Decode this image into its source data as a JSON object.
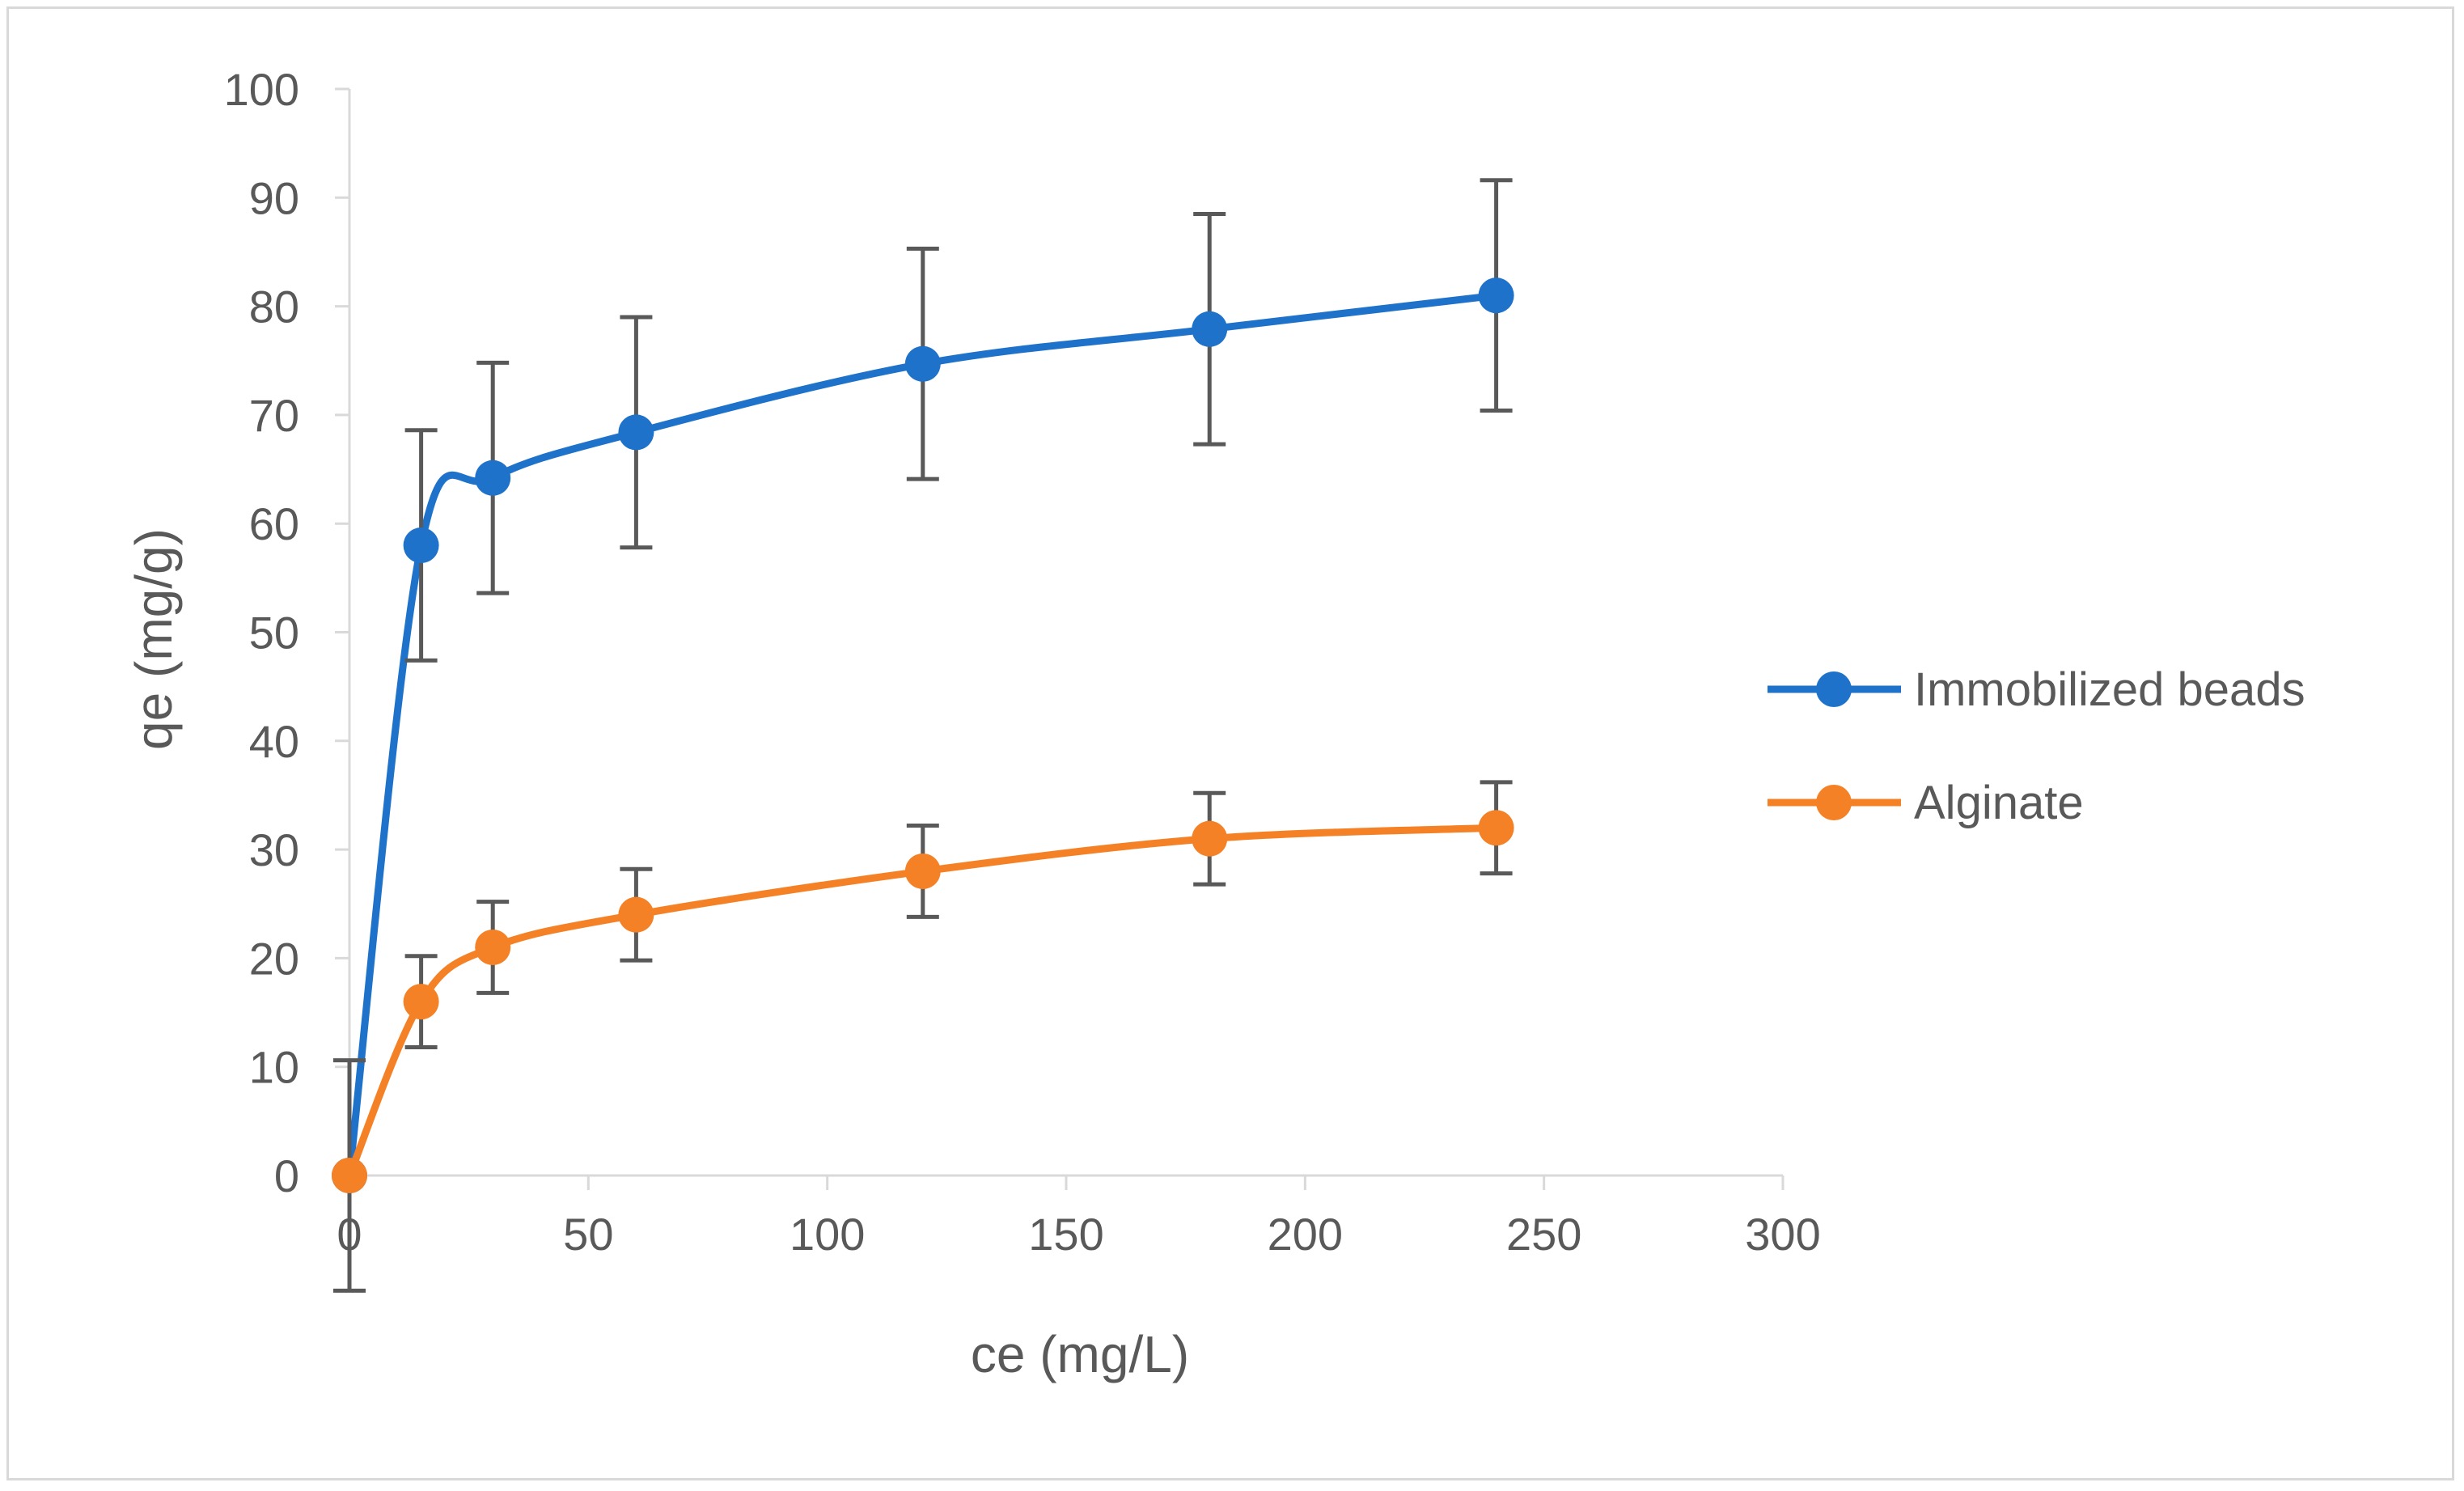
{
  "chart_data": {
    "type": "line",
    "title": "",
    "xlabel": "ce (mg/L)",
    "ylabel": "qe (mg/g)",
    "xlim": [
      0,
      300
    ],
    "ylim": [
      0,
      100
    ],
    "xticks": [
      0,
      50,
      100,
      150,
      200,
      250,
      300
    ],
    "yticks": [
      0,
      10,
      20,
      30,
      40,
      50,
      60,
      70,
      80,
      90,
      100
    ],
    "grid": false,
    "legend_position": "right",
    "smooth": true,
    "series": [
      {
        "name": "Immobilized beads",
        "color": "#1f72c9",
        "x": [
          0,
          15,
          30,
          60,
          120,
          180,
          240
        ],
        "y": [
          0,
          58,
          64.2,
          68.4,
          74.7,
          77.9,
          81
        ],
        "error": [
          10.6,
          10.6,
          10.6,
          10.6,
          10.6,
          10.6,
          10.6
        ]
      },
      {
        "name": "Alginate",
        "color": "#f58126",
        "x": [
          0,
          15,
          30,
          60,
          120,
          180,
          240
        ],
        "y": [
          0,
          16,
          21,
          24,
          28,
          31,
          32
        ],
        "error": [
          0,
          4.2,
          4.2,
          4.2,
          4.2,
          4.2,
          4.2
        ]
      }
    ]
  }
}
